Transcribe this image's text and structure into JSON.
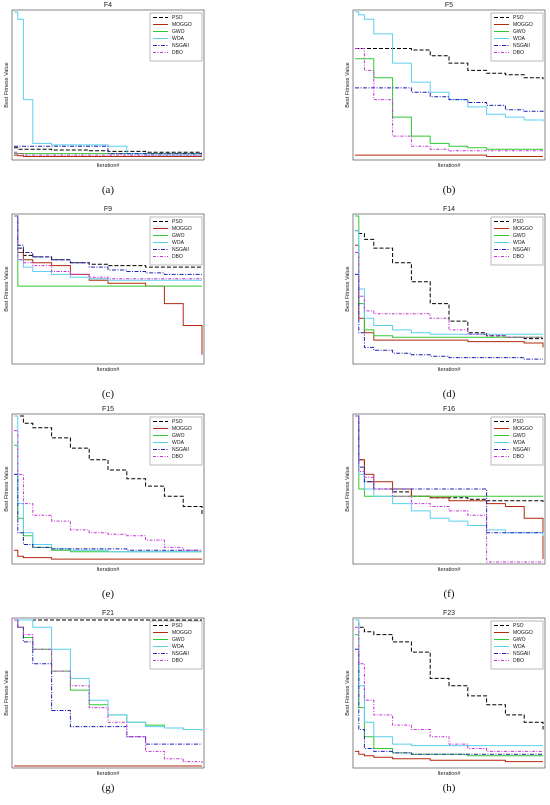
{
  "chart_data": [
    {
      "type": "line",
      "panel": "a",
      "title": "F4",
      "xlabel": "Iteration#",
      "ylabel": "Best Fitness Value",
      "caption": "(a)",
      "x": [
        0,
        2,
        5,
        10,
        20,
        30,
        40,
        50,
        60,
        70,
        80,
        90,
        100
      ],
      "ylim": [
        0,
        100
      ],
      "legend_position": "top-right",
      "series": [
        {
          "name": "PSO",
          "values": [
            7,
            6,
            6,
            6,
            5.5,
            5.5,
            5,
            4.5,
            4.5,
            4,
            4,
            4,
            4
          ]
        },
        {
          "name": "MOGGO",
          "values": [
            2,
            1.5,
            1,
            1,
            1,
            1,
            1,
            1,
            1,
            1,
            1,
            1,
            1
          ]
        },
        {
          "name": "GWO",
          "values": [
            3,
            3,
            3,
            3,
            3,
            3,
            3,
            3,
            3,
            3,
            3,
            3,
            3
          ]
        },
        {
          "name": "WOA",
          "values": [
            100,
            95,
            40,
            10,
            9,
            9,
            9,
            8,
            3,
            2,
            2,
            2,
            2
          ]
        },
        {
          "name": "NSGAII",
          "values": [
            8,
            8,
            8,
            8,
            8,
            8,
            8,
            3,
            3,
            3,
            3,
            3,
            3
          ]
        },
        {
          "name": "DBO",
          "values": [
            4,
            3,
            2,
            2,
            2,
            2,
            2,
            2,
            2,
            2,
            2,
            2,
            2
          ]
        }
      ]
    },
    {
      "type": "line",
      "panel": "b",
      "title": "F5",
      "xlabel": "Iteration#",
      "ylabel": "Best Fitness Value",
      "caption": "(b)",
      "x": [
        0,
        2,
        5,
        10,
        20,
        30,
        40,
        50,
        60,
        70,
        80,
        90,
        100
      ],
      "ylim": [
        0,
        100
      ],
      "legend_position": "top-right",
      "series": [
        {
          "name": "PSO",
          "values": [
            75,
            75,
            75,
            75,
            75,
            74,
            70,
            65,
            60,
            58,
            57,
            55,
            54
          ]
        },
        {
          "name": "MOGGO",
          "values": [
            2,
            2,
            2,
            2,
            2,
            2,
            2,
            2,
            2,
            1,
            1,
            1,
            1
          ]
        },
        {
          "name": "GWO",
          "values": [
            68,
            68,
            68,
            55,
            28,
            15,
            10,
            8,
            7,
            6,
            6,
            6,
            6
          ]
        },
        {
          "name": "WOA",
          "values": [
            100,
            98,
            95,
            85,
            65,
            52,
            45,
            40,
            35,
            30,
            28,
            26,
            25
          ]
        },
        {
          "name": "NSGAII",
          "values": [
            48,
            48,
            48,
            48,
            48,
            45,
            42,
            40,
            38,
            36,
            33,
            32,
            31
          ]
        },
        {
          "name": "DBO",
          "values": [
            75,
            75,
            60,
            40,
            15,
            8,
            6,
            5,
            5,
            5,
            5,
            5,
            5
          ]
        }
      ]
    },
    {
      "type": "line",
      "panel": "c",
      "title": "F9",
      "xlabel": "Iteration#",
      "ylabel": "Best Fitness Value",
      "caption": "(c)",
      "x": [
        0,
        2,
        5,
        10,
        20,
        30,
        40,
        50,
        60,
        70,
        80,
        90,
        100
      ],
      "ylim": [
        0,
        100
      ],
      "legend_position": "top-right",
      "series": [
        {
          "name": "PSO",
          "values": [
            100,
            78,
            73,
            72,
            70,
            68,
            67,
            66,
            66,
            65,
            65,
            65,
            65
          ]
        },
        {
          "name": "MOGGO",
          "values": [
            100,
            75,
            70,
            68,
            66,
            60,
            56,
            54,
            54,
            52,
            40,
            25,
            5
          ]
        },
        {
          "name": "GWO",
          "values": [
            100,
            52,
            52,
            52,
            52,
            52,
            52,
            52,
            52,
            52,
            52,
            52,
            52
          ]
        },
        {
          "name": "WOA",
          "values": [
            100,
            70,
            65,
            62,
            60,
            58,
            57,
            56,
            56,
            56,
            56,
            56,
            56
          ]
        },
        {
          "name": "NSGAII",
          "values": [
            100,
            80,
            75,
            72,
            70,
            68,
            65,
            63,
            62,
            61,
            60,
            60,
            60
          ]
        },
        {
          "name": "DBO",
          "values": [
            100,
            70,
            68,
            66,
            62,
            60,
            58,
            57,
            57,
            57,
            57,
            57,
            57
          ]
        }
      ]
    },
    {
      "type": "line",
      "panel": "d",
      "title": "F14",
      "xlabel": "Iteration#",
      "ylabel": "Best Fitness Value",
      "caption": "(d)",
      "x": [
        0,
        2,
        5,
        10,
        20,
        30,
        40,
        50,
        60,
        70,
        80,
        90,
        100
      ],
      "ylim": [
        0,
        100
      ],
      "legend_position": "top-right",
      "series": [
        {
          "name": "PSO",
          "values": [
            90,
            88,
            84,
            78,
            68,
            55,
            40,
            28,
            20,
            18,
            17,
            16,
            16
          ]
        },
        {
          "name": "MOGGO",
          "values": [
            80,
            30,
            20,
            15,
            15,
            15,
            15,
            15,
            14,
            14,
            14,
            13,
            10
          ]
        },
        {
          "name": "GWO",
          "values": [
            100,
            40,
            22,
            18,
            17,
            17,
            17,
            17,
            17,
            17,
            17,
            17,
            17
          ]
        },
        {
          "name": "WOA",
          "values": [
            90,
            50,
            30,
            25,
            22,
            20,
            19,
            19,
            19,
            19,
            19,
            19,
            19
          ]
        },
        {
          "name": "NSGAII",
          "values": [
            60,
            20,
            10,
            8,
            6,
            5,
            4,
            3,
            3,
            3,
            3,
            2,
            2
          ]
        },
        {
          "name": "DBO",
          "values": [
            75,
            45,
            35,
            33,
            33,
            33,
            30,
            22,
            19,
            18,
            17,
            17,
            17
          ]
        }
      ]
    },
    {
      "type": "line",
      "panel": "e",
      "title": "F15",
      "xlabel": "Iteration#",
      "ylabel": "Best Fitness Value",
      "caption": "(e)",
      "x": [
        0,
        2,
        5,
        10,
        20,
        30,
        40,
        50,
        60,
        70,
        80,
        90,
        100
      ],
      "ylim": [
        0,
        100
      ],
      "legend_position": "top-right",
      "series": [
        {
          "name": "PSO",
          "values": [
            100,
            100,
            95,
            92,
            85,
            78,
            70,
            63,
            57,
            52,
            45,
            38,
            32
          ]
        },
        {
          "name": "MOGGO",
          "values": [
            8,
            4,
            3,
            3,
            2,
            2,
            2,
            2,
            2,
            2,
            2,
            2,
            2
          ]
        },
        {
          "name": "GWO",
          "values": [
            80,
            30,
            18,
            10,
            8,
            7,
            7,
            7,
            7,
            7,
            7,
            7,
            7
          ]
        },
        {
          "name": "WOA",
          "values": [
            100,
            40,
            20,
            12,
            9,
            8,
            8,
            7,
            7,
            7,
            7,
            7,
            7
          ]
        },
        {
          "name": "NSGAII",
          "values": [
            60,
            20,
            12,
            10,
            9,
            9,
            9,
            9,
            8,
            8,
            8,
            8,
            8
          ]
        },
        {
          "name": "DBO",
          "values": [
            90,
            60,
            40,
            32,
            28,
            22,
            20,
            19,
            18,
            15,
            10,
            8,
            8
          ]
        }
      ]
    },
    {
      "type": "line",
      "panel": "f",
      "title": "F16",
      "xlabel": "Iteration#",
      "ylabel": "Best Fitness Value",
      "caption": "(f)",
      "x": [
        0,
        2,
        5,
        10,
        20,
        30,
        40,
        50,
        60,
        70,
        80,
        90,
        100
      ],
      "ylim": [
        0,
        100
      ],
      "legend_position": "top-right",
      "series": [
        {
          "name": "PSO",
          "values": [
            100,
            70,
            55,
            50,
            48,
            45,
            44,
            44,
            43,
            42,
            42,
            42,
            40
          ]
        },
        {
          "name": "MOGGO",
          "values": [
            100,
            70,
            60,
            55,
            50,
            45,
            44,
            42,
            42,
            40,
            38,
            30,
            2
          ]
        },
        {
          "name": "GWO",
          "values": [
            100,
            50,
            45,
            45,
            45,
            45,
            45,
            45,
            45,
            45,
            45,
            45,
            45
          ]
        },
        {
          "name": "WOA",
          "values": [
            100,
            60,
            50,
            45,
            40,
            35,
            30,
            28,
            25,
            22,
            20,
            20,
            18
          ]
        },
        {
          "name": "NSGAII",
          "values": [
            100,
            65,
            55,
            50,
            50,
            50,
            50,
            50,
            50,
            20,
            20,
            20,
            20
          ]
        },
        {
          "name": "DBO",
          "values": [
            100,
            62,
            58,
            50,
            45,
            40,
            38,
            35,
            32,
            0,
            0,
            0,
            0
          ]
        }
      ]
    },
    {
      "type": "line",
      "panel": "g",
      "title": "F21",
      "xlabel": "Iteration#",
      "ylabel": "Best Fitness Value",
      "caption": "(g)",
      "x": [
        0,
        2,
        5,
        10,
        20,
        30,
        40,
        50,
        60,
        70,
        80,
        90,
        100
      ],
      "ylim": [
        0,
        100
      ],
      "legend_position": "top-right",
      "series": [
        {
          "name": "PSO",
          "values": [
            100,
            100,
            100,
            100,
            100,
            100,
            100,
            100,
            100,
            100,
            100,
            100,
            100
          ]
        },
        {
          "name": "MOGGO",
          "values": [
            0,
            0,
            0,
            0,
            0,
            0,
            0,
            0,
            0,
            0,
            0,
            0,
            0
          ]
        },
        {
          "name": "GWO",
          "values": [
            100,
            95,
            88,
            80,
            65,
            52,
            42,
            35,
            30,
            28,
            26,
            25,
            25
          ]
        },
        {
          "name": "WOA",
          "values": [
            100,
            100,
            100,
            95,
            80,
            60,
            45,
            35,
            30,
            27,
            26,
            25,
            24
          ]
        },
        {
          "name": "NSGAII",
          "values": [
            100,
            95,
            85,
            70,
            38,
            27,
            27,
            27,
            20,
            15,
            15,
            15,
            15
          ]
        },
        {
          "name": "DBO",
          "values": [
            100,
            95,
            90,
            80,
            65,
            55,
            40,
            30,
            20,
            10,
            5,
            3,
            2
          ]
        }
      ]
    },
    {
      "type": "line",
      "panel": "h",
      "title": "F23",
      "xlabel": "Iteration#",
      "ylabel": "Best Fitness Value",
      "caption": "(h)",
      "x": [
        0,
        2,
        5,
        10,
        20,
        30,
        40,
        50,
        60,
        70,
        80,
        90,
        100
      ],
      "ylim": [
        0,
        100
      ],
      "legend_position": "top-right",
      "series": [
        {
          "name": "PSO",
          "values": [
            100,
            95,
            92,
            90,
            85,
            78,
            60,
            55,
            48,
            42,
            35,
            30,
            25
          ]
        },
        {
          "name": "MOGGO",
          "values": [
            10,
            8,
            7,
            6,
            5,
            5,
            4,
            4,
            4,
            4,
            3,
            3,
            3
          ]
        },
        {
          "name": "GWO",
          "values": [
            90,
            40,
            20,
            12,
            9,
            8,
            8,
            8,
            7,
            7,
            7,
            7,
            7
          ]
        },
        {
          "name": "WOA",
          "values": [
            100,
            55,
            30,
            20,
            15,
            14,
            14,
            14,
            14,
            14,
            14,
            14,
            14
          ]
        },
        {
          "name": "NSGAII",
          "values": [
            80,
            25,
            12,
            10,
            9,
            8,
            8,
            8,
            8,
            8,
            8,
            8,
            8
          ]
        },
        {
          "name": "DBO",
          "values": [
            95,
            70,
            45,
            35,
            28,
            25,
            20,
            15,
            12,
            10,
            10,
            10,
            10
          ]
        }
      ]
    }
  ],
  "series_colors": {
    "PSO": "#000000",
    "MOGGO": "#b22a0e",
    "GWO": "#32c832",
    "WOA": "#5cd0f0",
    "NSGAII": "#1f1fb4",
    "DBO": "#c434d4"
  },
  "series_dashes": {
    "PSO": "4,2",
    "MOGGO": "",
    "GWO": "",
    "WOA": "",
    "NSGAII": "4,1.5,1,1.5",
    "DBO": "3,1.5,1,1.5"
  }
}
